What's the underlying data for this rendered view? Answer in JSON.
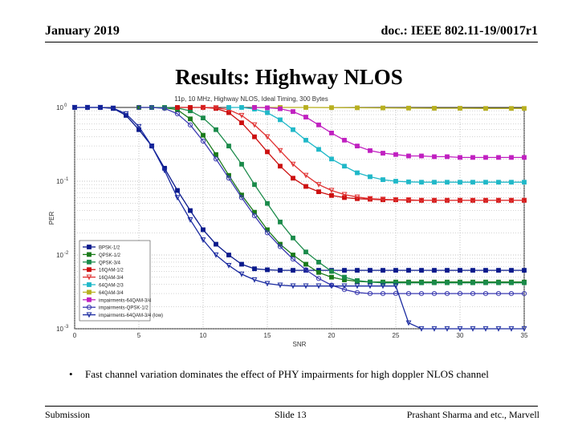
{
  "header": {
    "left": "January 2019",
    "right": "doc.: IEEE 802.11-19/0017r1"
  },
  "slide_title": "Results: Highway NLOS",
  "bullet": {
    "marker": "•",
    "text": "Fast channel variation dominates the effect of PHY impairments for high doppler NLOS channel"
  },
  "footer": {
    "left": "Submission",
    "center": "Slide 13",
    "right": "Prashant Sharma and etc., Marvell"
  },
  "chart_data": {
    "type": "line",
    "title": "11p, 10 MHz, Highway NLOS, Ideal Timing, 300 Bytes",
    "xlabel": "SNR",
    "ylabel": "PER",
    "xlim": [
      0,
      35
    ],
    "ylim": [
      0.001,
      1
    ],
    "yscale": "log",
    "grid": true,
    "legend_position": "lower-left",
    "x_ticks": [
      0,
      5,
      10,
      15,
      20,
      25,
      30,
      35
    ],
    "y_ticks": [
      {
        "value": 1,
        "label": "10^0"
      },
      {
        "value": 0.1,
        "label": "10^-1"
      },
      {
        "value": 0.01,
        "label": "10^-2"
      },
      {
        "value": 0.001,
        "label": "10^-3"
      }
    ],
    "series": [
      {
        "name": "BPSK-1/2",
        "color": "#0a1a8c",
        "marker": "square",
        "x": [
          0,
          1,
          2,
          3,
          4,
          5,
          6,
          7,
          8,
          9,
          10,
          11,
          12,
          13,
          14,
          15,
          16,
          17,
          18,
          19,
          20,
          21,
          22,
          23,
          24,
          25,
          26,
          27,
          28,
          29,
          30,
          31,
          32,
          33,
          34,
          35
        ],
        "y": [
          1,
          1,
          1,
          0.97,
          0.78,
          0.5,
          0.3,
          0.15,
          0.075,
          0.04,
          0.022,
          0.014,
          0.01,
          0.0075,
          0.0065,
          0.0063,
          0.0062,
          0.0062,
          0.0062,
          0.0062,
          0.0062,
          0.0062,
          0.0062,
          0.0062,
          0.0062,
          0.0062,
          0.0062,
          0.0062,
          0.0062,
          0.0062,
          0.0062,
          0.0062,
          0.0062,
          0.0062,
          0.0062,
          0.0062
        ]
      },
      {
        "name": "QPSK-1/2",
        "color": "#1a7a1a",
        "marker": "square",
        "x": [
          5,
          6,
          7,
          8,
          9,
          10,
          11,
          12,
          13,
          14,
          15,
          16,
          17,
          18,
          19,
          20,
          21,
          22,
          23,
          24,
          25,
          26,
          27,
          28,
          29,
          30,
          31,
          32,
          33,
          34,
          35
        ],
        "y": [
          1,
          1,
          0.99,
          0.93,
          0.7,
          0.42,
          0.23,
          0.12,
          0.065,
          0.038,
          0.022,
          0.014,
          0.01,
          0.0075,
          0.0058,
          0.005,
          0.0046,
          0.0044,
          0.0043,
          0.0043,
          0.0043,
          0.0043,
          0.0043,
          0.0043,
          0.0043,
          0.0043,
          0.0043,
          0.0043,
          0.0043,
          0.0043,
          0.0043
        ]
      },
      {
        "name": "QPSK-3/4",
        "color": "#1a8a4a",
        "marker": "square",
        "x": [
          6,
          7,
          8,
          9,
          10,
          11,
          12,
          13,
          14,
          15,
          16,
          17,
          18,
          19,
          20,
          21,
          22,
          23,
          24,
          25,
          26,
          27,
          28,
          29,
          30,
          31,
          32,
          33,
          34,
          35
        ],
        "y": [
          1,
          1,
          0.98,
          0.9,
          0.72,
          0.5,
          0.3,
          0.17,
          0.09,
          0.05,
          0.028,
          0.017,
          0.011,
          0.008,
          0.006,
          0.005,
          0.0045,
          0.0043,
          0.0042,
          0.0042,
          0.0042,
          0.0042,
          0.0042,
          0.0042,
          0.0042,
          0.0042,
          0.0042,
          0.0042,
          0.0042,
          0.0042
        ]
      },
      {
        "name": "16QAM-1/2",
        "color": "#cc1010",
        "marker": "square",
        "x": [
          8,
          9,
          10,
          11,
          12,
          13,
          14,
          15,
          16,
          17,
          18,
          19,
          20,
          21,
          22,
          23,
          24,
          25,
          26,
          27,
          28,
          29,
          30,
          31,
          32,
          33,
          34,
          35
        ],
        "y": [
          1,
          1,
          1,
          0.97,
          0.85,
          0.62,
          0.4,
          0.25,
          0.16,
          0.11,
          0.085,
          0.072,
          0.064,
          0.06,
          0.058,
          0.057,
          0.056,
          0.056,
          0.055,
          0.055,
          0.055,
          0.055,
          0.055,
          0.055,
          0.055,
          0.055,
          0.055,
          0.055
        ]
      },
      {
        "name": "16QAM-3/4",
        "color": "#e03030",
        "marker": "triangle-down",
        "x": [
          10,
          11,
          12,
          13,
          14,
          15,
          16,
          17,
          18,
          19,
          20,
          21,
          22,
          23,
          24,
          25,
          26,
          27,
          28,
          29,
          30,
          31,
          32,
          33,
          34,
          35
        ],
        "y": [
          1,
          0.99,
          0.93,
          0.78,
          0.58,
          0.4,
          0.26,
          0.17,
          0.12,
          0.09,
          0.075,
          0.066,
          0.061,
          0.058,
          0.057,
          0.056,
          0.056,
          0.055,
          0.055,
          0.055,
          0.055,
          0.055,
          0.055,
          0.055,
          0.055,
          0.055
        ]
      },
      {
        "name": "64QAM-2/3",
        "color": "#20b8c8",
        "marker": "square",
        "x": [
          12,
          13,
          14,
          15,
          16,
          17,
          18,
          19,
          20,
          21,
          22,
          23,
          24,
          25,
          26,
          27,
          28,
          29,
          30,
          31,
          32,
          33,
          34,
          35
        ],
        "y": [
          1,
          1,
          0.95,
          0.85,
          0.68,
          0.5,
          0.36,
          0.27,
          0.2,
          0.16,
          0.13,
          0.115,
          0.105,
          0.1,
          0.098,
          0.097,
          0.097,
          0.097,
          0.097,
          0.097,
          0.097,
          0.097,
          0.097,
          0.097
        ]
      },
      {
        "name": "64QAM-3/4",
        "color": "#b8b020",
        "marker": "square",
        "x": [
          14,
          16,
          18,
          20,
          22,
          24,
          26,
          28,
          30,
          32,
          34,
          35
        ],
        "y": [
          1,
          1,
          1,
          0.995,
          0.99,
          0.985,
          0.98,
          0.975,
          0.975,
          0.97,
          0.97,
          0.97
        ]
      },
      {
        "name": "impairments-64QAM-3/4",
        "color": "#c020c0",
        "marker": "square",
        "x": [
          14,
          15,
          16,
          17,
          18,
          19,
          20,
          21,
          22,
          23,
          24,
          25,
          26,
          27,
          28,
          29,
          30,
          31,
          32,
          33,
          34,
          35
        ],
        "y": [
          1,
          0.99,
          0.96,
          0.88,
          0.74,
          0.58,
          0.45,
          0.36,
          0.3,
          0.26,
          0.24,
          0.23,
          0.22,
          0.22,
          0.215,
          0.215,
          0.21,
          0.21,
          0.21,
          0.21,
          0.21,
          0.21
        ]
      },
      {
        "name": "impairments-QPSK-1/2",
        "color": "#3a3ab0",
        "marker": "circle",
        "x": [
          5,
          6,
          7,
          8,
          9,
          10,
          11,
          12,
          13,
          14,
          15,
          16,
          17,
          18,
          19,
          20,
          21,
          22,
          23,
          24,
          25,
          26,
          27,
          28,
          29,
          30,
          31,
          32,
          33,
          34,
          35
        ],
        "y": [
          1,
          1,
          0.97,
          0.82,
          0.58,
          0.35,
          0.2,
          0.11,
          0.06,
          0.034,
          0.02,
          0.013,
          0.0088,
          0.0063,
          0.0048,
          0.0039,
          0.0034,
          0.0031,
          0.003,
          0.003,
          0.003,
          0.003,
          0.003,
          0.003,
          0.003,
          0.003,
          0.003,
          0.003,
          0.003,
          0.003,
          0.003
        ]
      },
      {
        "name": "impairments-64QAM-3/4 (low)",
        "color": "#1a2aa0",
        "marker": "triangle-down",
        "x": [
          0,
          1,
          2,
          3,
          4,
          5,
          6,
          7,
          8,
          9,
          10,
          11,
          12,
          13,
          14,
          15,
          16,
          17,
          18,
          19,
          20,
          21,
          22,
          23,
          24,
          25,
          26,
          27,
          28,
          29,
          30,
          31,
          32,
          33,
          34,
          35
        ],
        "y": [
          1,
          1,
          1,
          0.98,
          0.82,
          0.55,
          0.3,
          0.14,
          0.06,
          0.03,
          0.016,
          0.01,
          0.0072,
          0.0055,
          0.0046,
          0.0041,
          0.0039,
          0.0038,
          0.0038,
          0.0038,
          0.0038,
          0.0038,
          0.0038,
          0.0038,
          0.0038,
          0.0038,
          0.0012,
          0.001,
          0.001,
          0.001,
          0.001,
          0.001,
          0.001,
          0.001,
          0.001,
          0.001
        ]
      }
    ]
  }
}
